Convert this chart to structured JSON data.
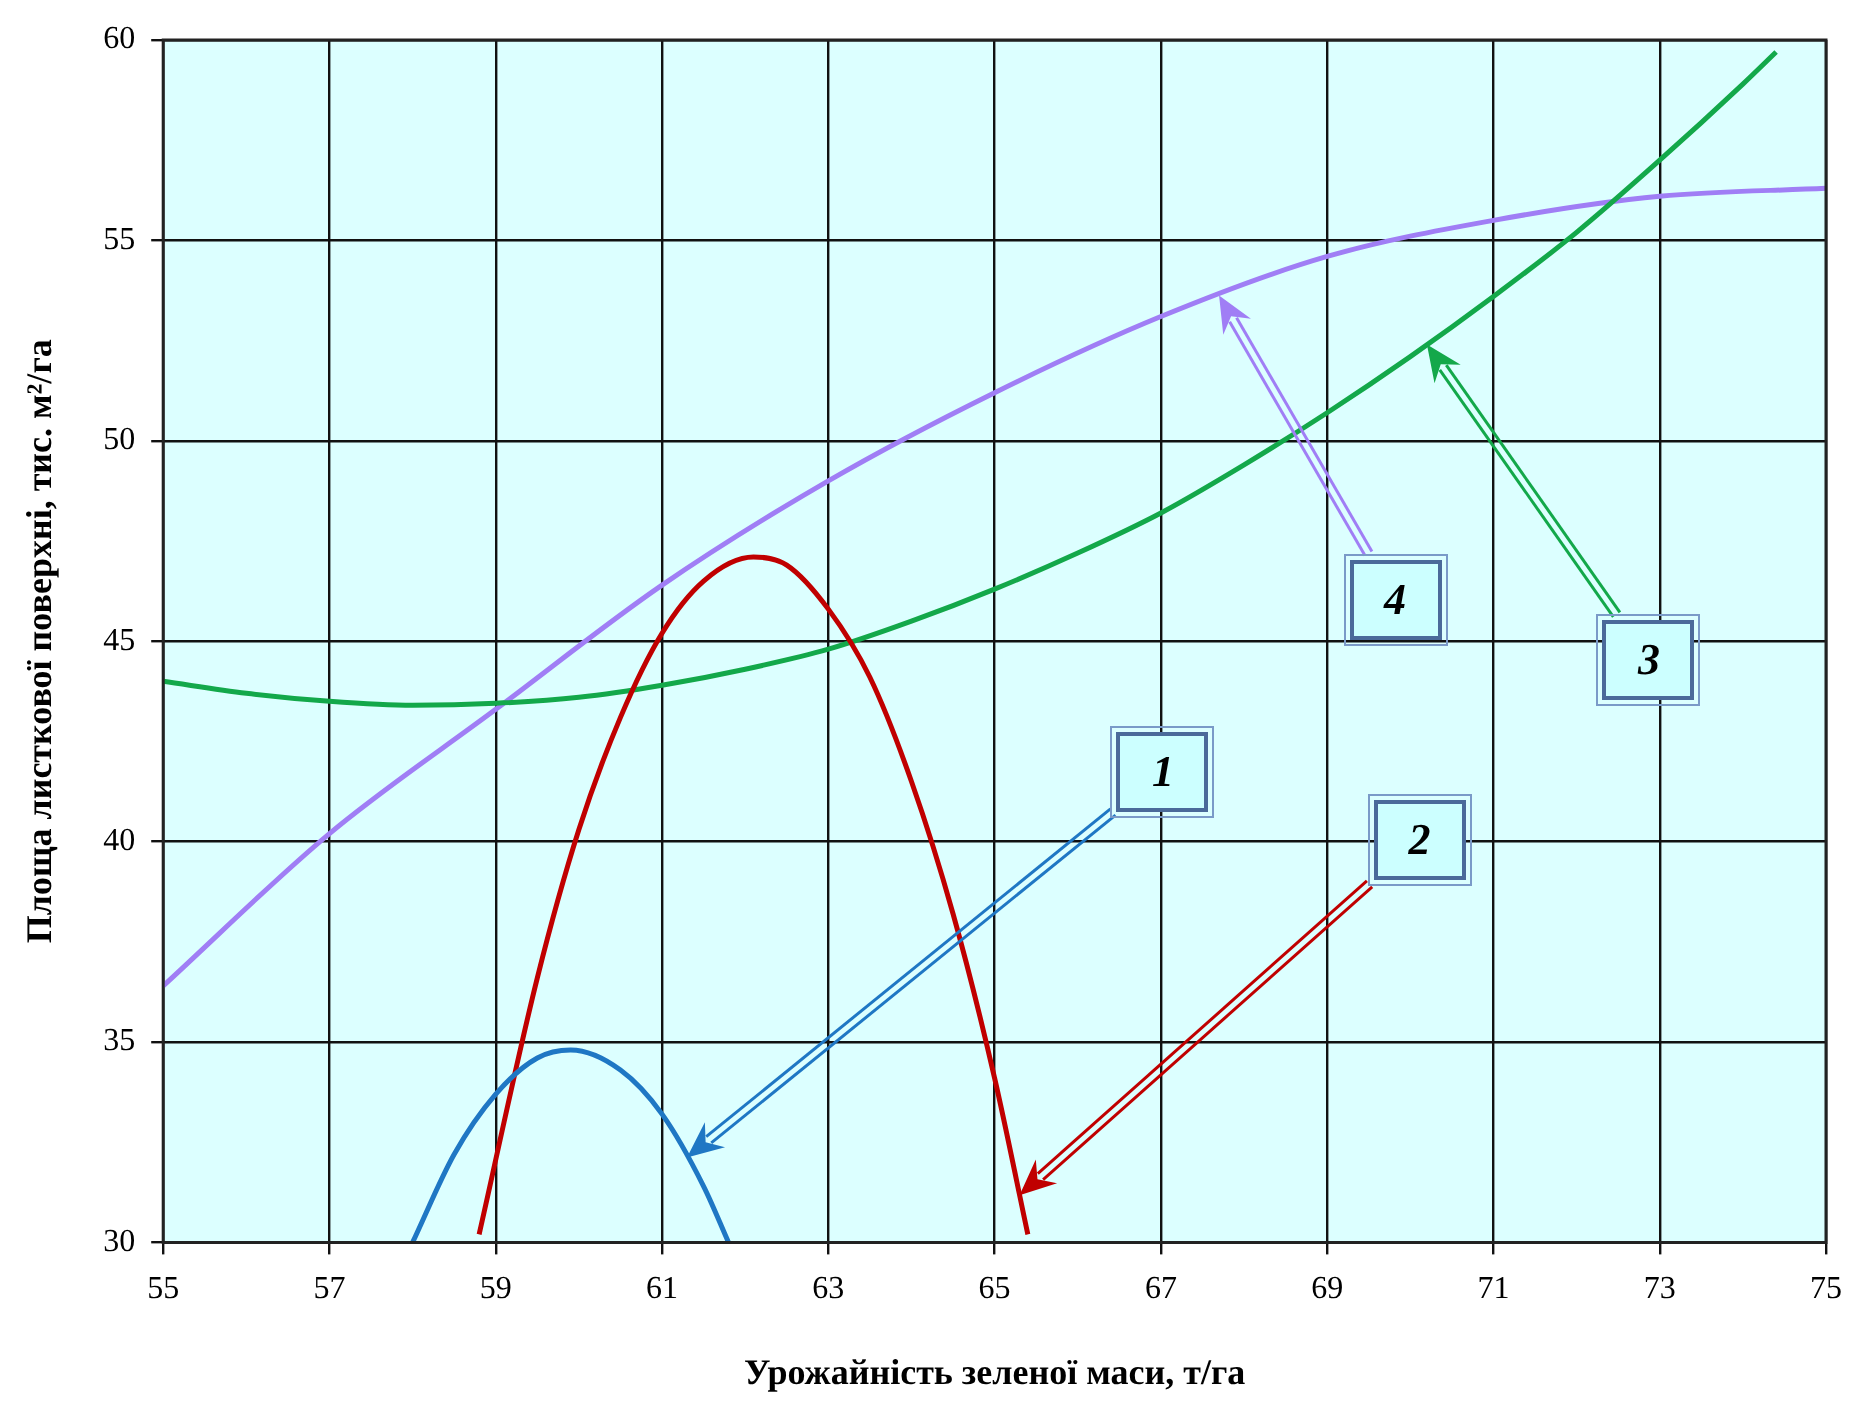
{
  "chart_data": {
    "type": "line",
    "xlabel": "Урожайність зеленої маси, т/га",
    "ylabel": "Площа листкової поверхні, тис. м²/га",
    "xlim": [
      55,
      75
    ],
    "ylim": [
      30,
      60
    ],
    "xticks": [
      55,
      57,
      59,
      61,
      63,
      65,
      67,
      69,
      71,
      73,
      75
    ],
    "yticks": [
      30,
      35,
      40,
      45,
      50,
      55,
      60
    ],
    "grid": true,
    "marker": "none",
    "line_style": "solid",
    "series": [
      {
        "color": "#1f77c4",
        "x": [
          58.0,
          58.5,
          59,
          59.5,
          59.9,
          60.5,
          61,
          61.5,
          61.8
        ],
        "values": [
          30.0,
          32.2,
          33.7,
          34.6,
          34.8,
          34.3,
          33.2,
          31.4,
          30.0
        ]
      },
      {
        "color": "#c00000",
        "x": [
          58.8,
          59.5,
          60,
          60.5,
          61,
          61.5,
          62.1,
          62.5,
          63,
          63.5,
          64,
          64.5,
          65,
          65.4
        ],
        "values": [
          30.2,
          36.6,
          40.3,
          43.1,
          45.2,
          46.5,
          47.1,
          46.9,
          45.8,
          44.1,
          41.5,
          38.2,
          34.1,
          30.2
        ]
      },
      {
        "color": "#13a84a",
        "x": [
          55,
          56,
          57,
          58,
          59,
          60,
          61,
          62,
          63,
          64,
          65,
          66,
          67,
          68,
          69,
          70,
          71,
          72,
          73,
          74,
          74.4
        ],
        "values": [
          44.0,
          43.7,
          43.5,
          43.4,
          43.45,
          43.6,
          43.9,
          44.3,
          44.8,
          45.5,
          46.3,
          47.2,
          48.2,
          49.4,
          50.7,
          52.1,
          53.6,
          55.2,
          57.0,
          58.9,
          59.7
        ]
      },
      {
        "color": "#a07ef5",
        "x": [
          55,
          57,
          59,
          61,
          63,
          65,
          67,
          69,
          71,
          73,
          75
        ],
        "values": [
          36.4,
          40.2,
          43.3,
          46.4,
          49.0,
          51.2,
          53.1,
          54.6,
          55.5,
          56.1,
          56.3
        ]
      }
    ],
    "annotations": [
      "1",
      "2",
      "3",
      "4"
    ]
  }
}
